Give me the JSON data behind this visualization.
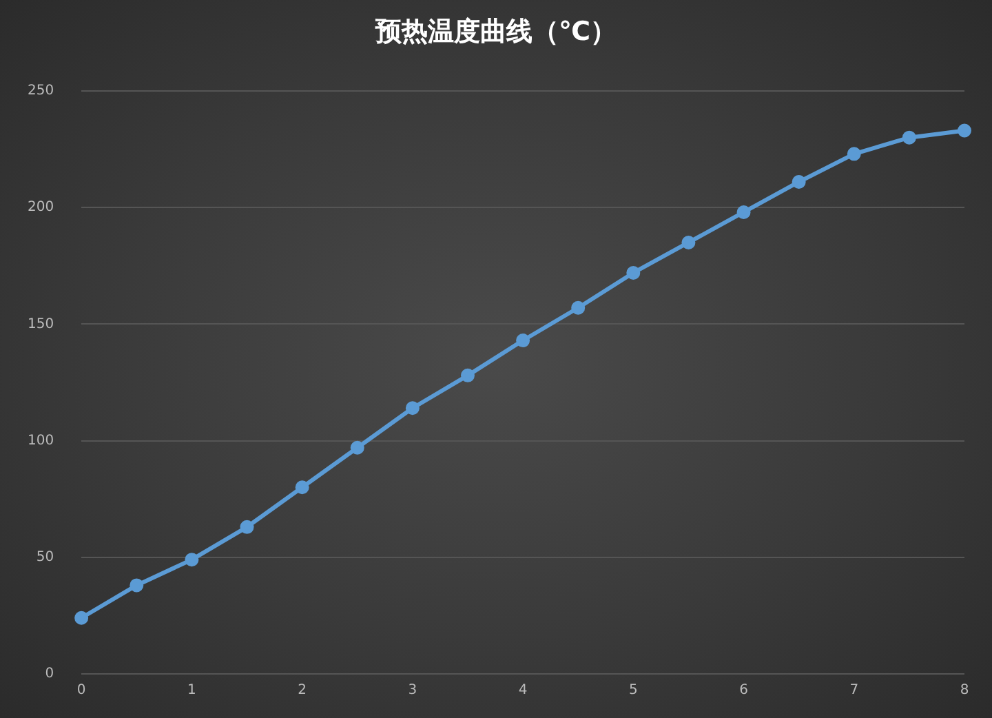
{
  "chart_data": {
    "type": "line",
    "title": "预热温度曲线（℃）",
    "x": [
      0,
      0.5,
      1,
      1.5,
      2,
      2.5,
      3,
      3.5,
      4,
      4.5,
      5,
      5.5,
      6,
      6.5,
      7,
      7.5,
      8
    ],
    "series": [
      {
        "color": "#5b9bd5",
        "values": [
          24,
          38,
          49,
          63,
          80,
          97,
          114,
          128,
          143,
          157,
          172,
          185,
          198,
          211,
          223,
          230,
          233
        ]
      }
    ],
    "xlim": [
      0,
      8
    ],
    "xticks": [
      0,
      1,
      2,
      3,
      4,
      5,
      6,
      7,
      8
    ],
    "ylim": [
      0,
      250
    ],
    "yticks": [
      0,
      50,
      100,
      150,
      200,
      250
    ],
    "grid": "y",
    "legend": false,
    "marker": "circle",
    "line_style": "solid"
  }
}
